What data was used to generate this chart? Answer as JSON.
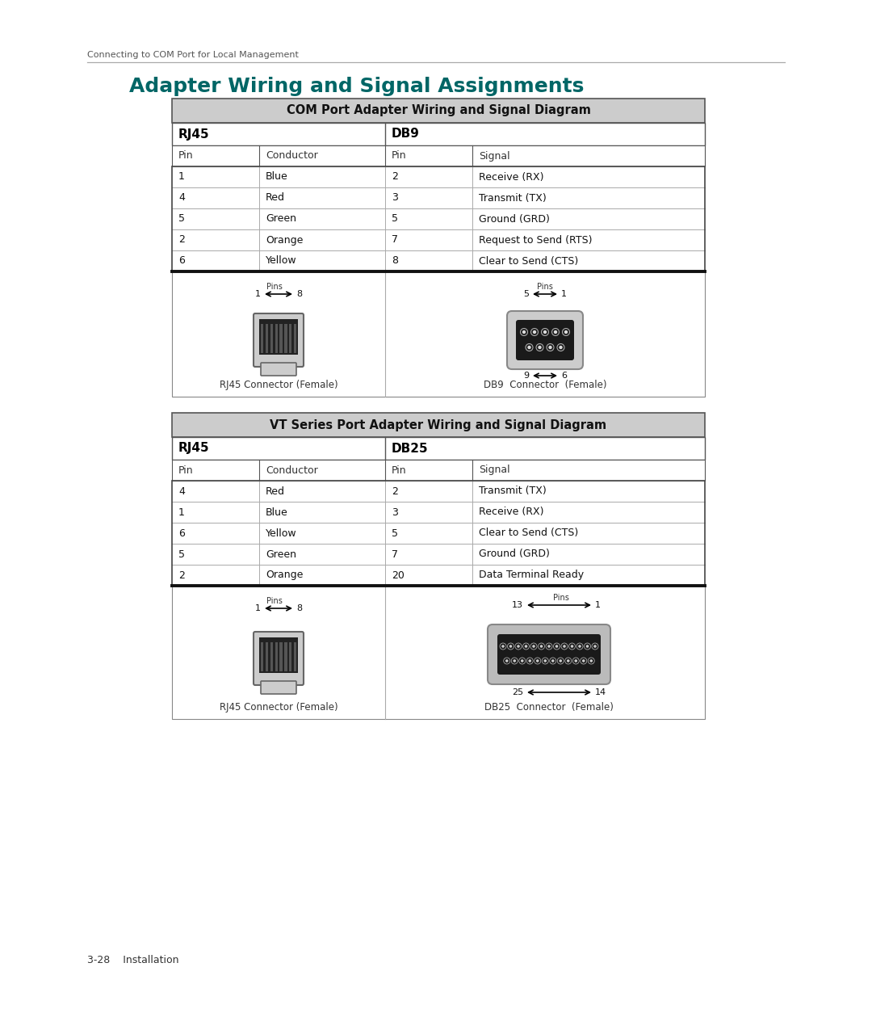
{
  "page_header": "Connecting to COM Port for Local Management",
  "main_title": "Adapter Wiring and Signal Assignments",
  "main_title_color": "#006666",
  "footer_text": "3-28    Installation",
  "table1": {
    "header": "COM Port Adapter Wiring and Signal Diagram",
    "col1_header": "RJ45",
    "col2_header": "DB9",
    "col_headers": [
      "Pin",
      "Conductor",
      "Pin",
      "Signal"
    ],
    "rows": [
      [
        "1",
        "Blue",
        "2",
        "Receive (RX)"
      ],
      [
        "4",
        "Red",
        "3",
        "Transmit (TX)"
      ],
      [
        "5",
        "Green",
        "5",
        "Ground (GRD)"
      ],
      [
        "2",
        "Orange",
        "7",
        "Request to Send (RTS)"
      ],
      [
        "6",
        "Yellow",
        "8",
        "Clear to Send (CTS)"
      ]
    ],
    "connector1_label": "RJ45 Connector (Female)",
    "connector2_label": "DB9  Connector  (Female)",
    "connector2_pins_top": "5↔ 1",
    "connector2_pins_bot": "9↔ 6"
  },
  "table2": {
    "header": "VT Series Port Adapter Wiring and Signal Diagram",
    "col1_header": "RJ45",
    "col2_header": "DB25",
    "col_headers": [
      "Pin",
      "Conductor",
      "Pin",
      "Signal"
    ],
    "rows": [
      [
        "4",
        "Red",
        "2",
        "Transmit (TX)"
      ],
      [
        "1",
        "Blue",
        "3",
        "Receive (RX)"
      ],
      [
        "6",
        "Yellow",
        "5",
        "Clear to Send (CTS)"
      ],
      [
        "5",
        "Green",
        "7",
        "Ground (GRD)"
      ],
      [
        "2",
        "Orange",
        "20",
        "Data Terminal Ready"
      ]
    ],
    "connector1_label": "RJ45 Connector (Female)",
    "connector2_label": "DB25  Connector  (Female)",
    "connector2_pins_top": "13↔ 1",
    "connector2_pins_bot": "25↔ 14"
  },
  "bg_color": "#ffffff",
  "header_bg": "#cccccc",
  "table_border_color": "#555555",
  "heavy_border": "#111111",
  "row_line_color": "#aaaaaa"
}
